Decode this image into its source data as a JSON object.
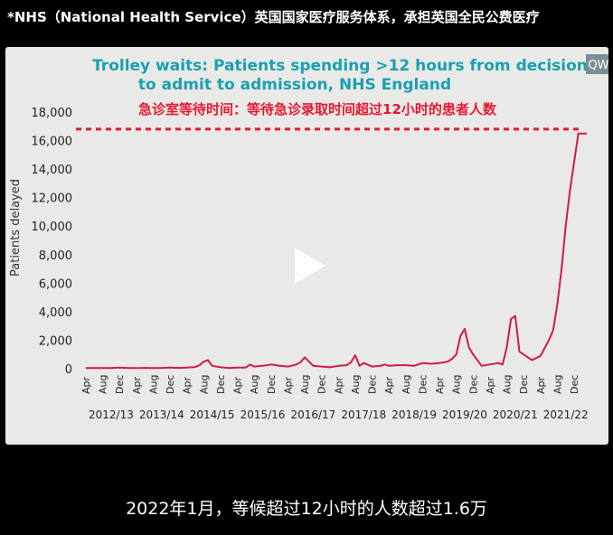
{
  "header": {
    "caption": "*NHS（National Health Service）英国国家医疗服务体系，承担英国全民公费医疗"
  },
  "footer": {
    "subtitle": "2022年1月，等候超过12小时的人数超过1.6万"
  },
  "player": {
    "play_icon": "play-icon"
  },
  "colors": {
    "line": "#d01c45",
    "title": "#1aa0b0",
    "annotation": "#e51931",
    "panel": "#e9e9e7"
  },
  "chart_data": {
    "type": "line",
    "title": "Trolley waits: Patients spending >12 hours from decision to admit to admission, NHS England",
    "subtitle_zh": "急诊室等待时间：等待急诊录取时间超过12小时的患者人数",
    "logo": "QW",
    "ylabel": "Patients delayed",
    "xlabel": "",
    "ylim": [
      0,
      18000
    ],
    "yticks": [
      "0",
      "2,000",
      "4,000",
      "6,000",
      "8,000",
      "10,000",
      "12,000",
      "14,000",
      "16,000",
      "18,000"
    ],
    "ytick_values": [
      0,
      2000,
      4000,
      6000,
      8000,
      10000,
      12000,
      14000,
      16000,
      18000
    ],
    "xtick_labels": [
      "Apr",
      "Aug",
      "Dec",
      "Apr",
      "Aug",
      "Dec",
      "Apr",
      "Aug",
      "Dec",
      "Apr",
      "Aug",
      "Dec",
      "Apr",
      "Aug",
      "Dec",
      "Apr",
      "Aug",
      "Dec",
      "Apr",
      "Aug",
      "Dec",
      "Apr",
      "Aug",
      "Dec",
      "Apr",
      "Aug",
      "Dec",
      "Apr",
      "Aug",
      "Dec"
    ],
    "year_labels": [
      "2012/13",
      "2013/14",
      "2014/15",
      "2015/16",
      "2016/17",
      "2017/18",
      "2018/19",
      "2019/20",
      "2020/21",
      "2021/22"
    ],
    "reference_line": 16800,
    "grid": false,
    "series": [
      {
        "x": [
          0,
          2,
          4,
          6,
          8,
          10,
          12,
          14,
          16,
          18,
          20,
          22,
          24,
          26,
          27,
          28,
          29,
          30,
          32,
          34,
          36,
          38,
          39,
          40,
          42,
          44,
          46,
          48,
          50,
          51,
          52,
          54,
          56,
          58,
          60,
          62,
          63,
          64,
          65,
          66,
          68,
          70,
          71,
          72,
          74,
          76,
          78,
          80,
          82,
          84,
          86,
          87,
          88,
          89,
          90,
          91,
          92,
          94,
          96,
          98,
          99,
          100,
          101,
          102,
          103,
          104,
          105,
          106,
          108,
          110,
          111,
          112,
          113,
          114,
          115,
          116,
          117,
          118,
          119
        ],
        "values": [
          50,
          50,
          50,
          50,
          80,
          50,
          50,
          60,
          50,
          60,
          80,
          60,
          80,
          120,
          250,
          500,
          600,
          200,
          100,
          50,
          80,
          80,
          300,
          150,
          200,
          300,
          200,
          150,
          300,
          450,
          800,
          200,
          150,
          100,
          200,
          250,
          450,
          950,
          200,
          400,
          150,
          200,
          300,
          200,
          250,
          250,
          200,
          400,
          350,
          400,
          500,
          700,
          1000,
          2300,
          2800,
          1500,
          1000,
          200,
          300,
          400,
          300,
          1500,
          3500,
          3700,
          1200,
          1000,
          800,
          600,
          900,
          2000,
          2700,
          4500,
          7000,
          10000,
          12500,
          14500,
          16500,
          16500,
          16500
        ]
      }
    ]
  }
}
